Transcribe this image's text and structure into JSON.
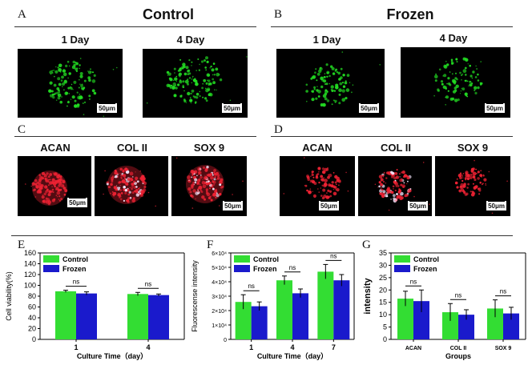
{
  "panels": {
    "A": {
      "letter": "A",
      "title": "Control",
      "labels": [
        "1 Day",
        "4 Day"
      ]
    },
    "B": {
      "letter": "B",
      "title": "Frozen",
      "labels": [
        "1 Day",
        "4 Day"
      ]
    },
    "C": {
      "letter": "C",
      "labels": [
        "ACAN",
        "COL II",
        "SOX 9"
      ]
    },
    "D": {
      "letter": "D",
      "labels": [
        "ACAN",
        "COL II",
        "SOX 9"
      ]
    },
    "E": {
      "letter": "E"
    },
    "F": {
      "letter": "F"
    },
    "G": {
      "letter": "G"
    }
  },
  "scale_label": "50μm",
  "colors": {
    "control": "#33dd33",
    "frozen": "#1a1acc",
    "green_stain": "#22dd22",
    "red_stain": "#ee2233"
  },
  "chart_data": [
    {
      "type": "bar",
      "panel": "E",
      "categories": [
        "1",
        "4"
      ],
      "series": [
        {
          "name": "Control",
          "values": [
            89,
            84
          ],
          "errors": [
            2,
            3
          ]
        },
        {
          "name": "Frozen",
          "values": [
            85,
            82
          ],
          "errors": [
            3,
            2
          ]
        }
      ],
      "significance": [
        "ns",
        "ns"
      ],
      "xlabel": "Culture Time（day）",
      "ylabel": "Cell viability(%)",
      "ylim": [
        0,
        160
      ],
      "yticks": [
        0,
        20,
        40,
        60,
        80,
        100,
        120,
        140,
        160
      ],
      "ytick_labels": [
        "0",
        "20",
        "40",
        "60",
        "80",
        "100",
        "120",
        "140",
        "160"
      ],
      "legend": "top-left"
    },
    {
      "type": "bar",
      "panel": "F",
      "categories": [
        "1",
        "4",
        "7"
      ],
      "series": [
        {
          "name": "Control",
          "values": [
            26000,
            41000,
            47000
          ],
          "errors": [
            5000,
            3000,
            5000
          ]
        },
        {
          "name": "Frozen",
          "values": [
            23000,
            32000,
            41000
          ],
          "errors": [
            3000,
            3000,
            4000
          ]
        }
      ],
      "significance": [
        "ns",
        "ns",
        "ns"
      ],
      "xlabel": "Culture Time（day）",
      "ylabel": "Fluorescense intensity",
      "ylim": [
        0,
        60000
      ],
      "yticks": [
        0,
        10000,
        20000,
        30000,
        40000,
        50000,
        60000
      ],
      "ytick_labels": [
        "0",
        "1×10⁴",
        "2×10⁴",
        "3×10⁴",
        "4×10⁴",
        "5×10⁴",
        "6×10⁴"
      ],
      "legend": "top-left"
    },
    {
      "type": "bar",
      "panel": "G",
      "categories": [
        "ACAN",
        "COL  II",
        "SOX 9"
      ],
      "series": [
        {
          "name": "Control",
          "values": [
            16.5,
            11,
            12.5
          ],
          "errors": [
            3,
            3.5,
            3.5
          ]
        },
        {
          "name": "Frozen",
          "values": [
            15.5,
            10,
            10.5
          ],
          "errors": [
            4.5,
            2,
            2.5
          ]
        }
      ],
      "significance": [
        "ns",
        "ns",
        "ns"
      ],
      "xlabel": "Groups",
      "ylabel": "intensity",
      "ylim": [
        0,
        35
      ],
      "yticks": [
        0,
        5,
        10,
        15,
        20,
        25,
        30,
        35
      ],
      "ytick_labels": [
        "0",
        "5",
        "10",
        "15",
        "20",
        "25",
        "30",
        "35"
      ],
      "legend": "top-left"
    }
  ]
}
